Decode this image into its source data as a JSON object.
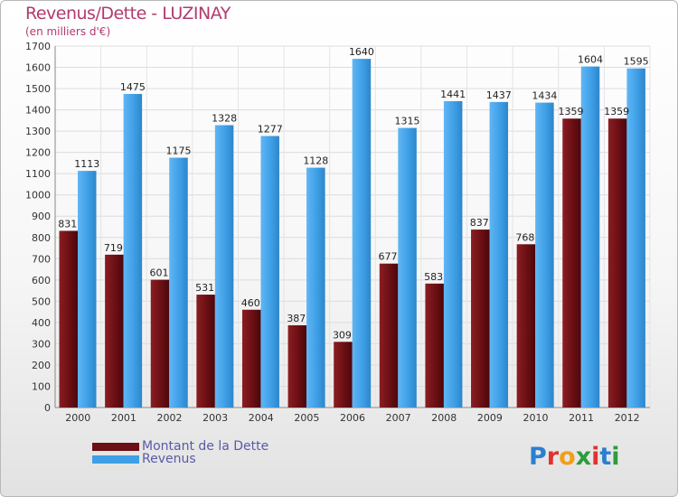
{
  "header": {
    "title": "Revenus/Dette - LUZINAY",
    "subtitle": "(en milliers d'€)"
  },
  "legend": [
    {
      "label": "Montant de la Dette",
      "color": "#6b0f14"
    },
    {
      "label": "Revenus",
      "color": "#3f9fe6"
    }
  ],
  "brand": {
    "logo_text": "Proxiti",
    "letter_colors": [
      "#2b7fd0",
      "#e3322e",
      "#f0a018",
      "#2c9c3c",
      "#e3322e",
      "#2b7fd0",
      "#2c9c3c"
    ]
  },
  "chart_data": {
    "type": "bar",
    "title": "Revenus/Dette - LUZINAY",
    "subtitle": "(en milliers d'€)",
    "categories": [
      "2000",
      "2001",
      "2002",
      "2003",
      "2004",
      "2005",
      "2006",
      "2007",
      "2008",
      "2009",
      "2010",
      "2011",
      "2012"
    ],
    "series": [
      {
        "name": "Montant de la Dette",
        "color": "#6b0f14",
        "values": [
          831,
          719,
          601,
          531,
          460,
          387,
          309,
          677,
          583,
          837,
          768,
          1359,
          1359
        ]
      },
      {
        "name": "Revenus",
        "color": "#3f9fe6",
        "values": [
          1113,
          1475,
          1175,
          1328,
          1277,
          1128,
          1640,
          1315,
          1441,
          1437,
          1434,
          1604,
          1595
        ]
      }
    ],
    "ylim": [
      0,
      1700
    ],
    "yticks": [
      0,
      100,
      200,
      300,
      400,
      500,
      600,
      700,
      800,
      900,
      1000,
      1100,
      1200,
      1300,
      1400,
      1500,
      1600,
      1700
    ],
    "grid": true,
    "legend_position": "bottom-left"
  }
}
